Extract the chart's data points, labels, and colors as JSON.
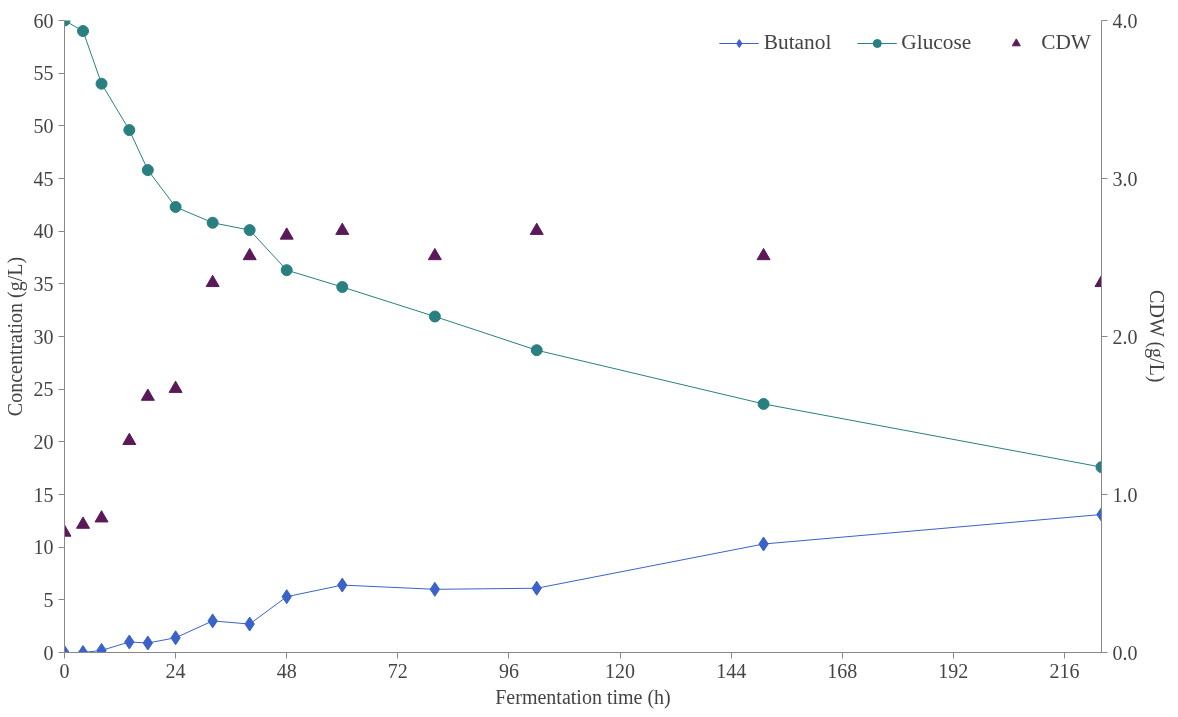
{
  "chart_data": {
    "type": "line",
    "xlabel": "Fermentation time (h)",
    "ylabel": "Concentration (g/L)",
    "y2label": "CDW (g/L)",
    "x": [
      0,
      4,
      8,
      14,
      18,
      24,
      32,
      40,
      48,
      60,
      80,
      102,
      151,
      224
    ],
    "series": [
      {
        "name": "Butanol",
        "color": "#3a62c8",
        "marker": "diamond",
        "values": [
          0,
          0,
          0.2,
          1.0,
          0.9,
          1.4,
          3.0,
          2.7,
          5.3,
          6.4,
          6.0,
          6.1,
          10.3,
          13.1
        ]
      },
      {
        "name": "Glucose",
        "color": "#2a8080",
        "marker": "circle",
        "values": [
          60,
          59,
          54,
          49.6,
          45.8,
          42.3,
          40.8,
          40.1,
          36.3,
          34.7,
          31.9,
          28.7,
          23.6,
          17.6
        ]
      },
      {
        "name": "CDW",
        "color": "#5a1a5a",
        "type": "scatter",
        "marker": "triangle",
        "axis": "y2",
        "values": [
          0.76,
          0.81,
          0.85,
          1.34,
          1.62,
          1.67,
          2.34,
          2.51,
          2.64,
          2.67,
          2.51,
          2.67,
          2.51,
          2.34
        ]
      }
    ],
    "xlim": [
      0,
      224
    ],
    "xticks": [
      0,
      24,
      48,
      72,
      96,
      120,
      144,
      168,
      192,
      216
    ],
    "ylim": [
      0,
      60
    ],
    "yticks": [
      0,
      5,
      10,
      15,
      20,
      25,
      30,
      35,
      40,
      45,
      50,
      55,
      60
    ],
    "y2lim": [
      0,
      4
    ],
    "y2ticks": [
      {
        "value": 0,
        "label": "0.0"
      },
      {
        "value": 1,
        "label": "1.0"
      },
      {
        "value": 2,
        "label": "2.0"
      },
      {
        "value": 3,
        "label": "3.0"
      },
      {
        "value": 4,
        "label": "4.0"
      }
    ],
    "legend": "top right",
    "grid": false
  }
}
